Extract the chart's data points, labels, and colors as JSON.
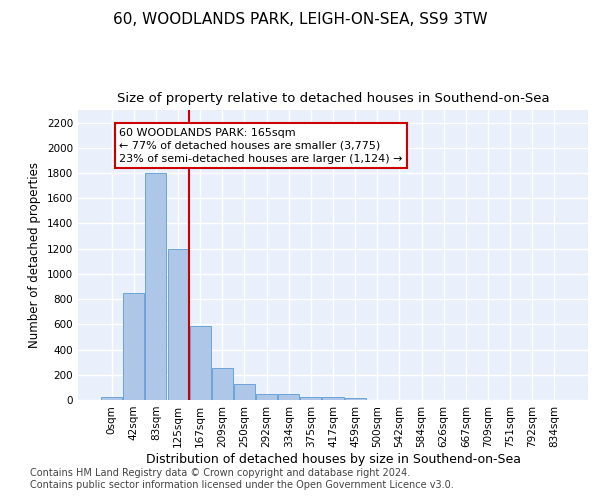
{
  "title1": "60, WOODLANDS PARK, LEIGH-ON-SEA, SS9 3TW",
  "title2": "Size of property relative to detached houses in Southend-on-Sea",
  "xlabel": "Distribution of detached houses by size in Southend-on-Sea",
  "ylabel": "Number of detached properties",
  "footer1": "Contains HM Land Registry data © Crown copyright and database right 2024.",
  "footer2": "Contains public sector information licensed under the Open Government Licence v3.0.",
  "bar_labels": [
    "0sqm",
    "42sqm",
    "83sqm",
    "125sqm",
    "167sqm",
    "209sqm",
    "250sqm",
    "292sqm",
    "334sqm",
    "375sqm",
    "417sqm",
    "459sqm",
    "500sqm",
    "542sqm",
    "584sqm",
    "626sqm",
    "667sqm",
    "709sqm",
    "751sqm",
    "792sqm",
    "834sqm"
  ],
  "bar_values": [
    25,
    850,
    1800,
    1200,
    585,
    255,
    130,
    45,
    45,
    25,
    20,
    15,
    0,
    0,
    0,
    0,
    0,
    0,
    0,
    0,
    0
  ],
  "bar_color": "#aec6e8",
  "bar_edge_color": "#5b9bd5",
  "vline_color": "#cc0000",
  "vline_index": 4,
  "annotation_text": "60 WOODLANDS PARK: 165sqm\n← 77% of detached houses are smaller (3,775)\n23% of semi-detached houses are larger (1,124) →",
  "annotation_box_facecolor": "#ffffff",
  "annotation_box_edgecolor": "#cc0000",
  "ylim": [
    0,
    2300
  ],
  "yticks": [
    0,
    200,
    400,
    600,
    800,
    1000,
    1200,
    1400,
    1600,
    1800,
    2000,
    2200
  ],
  "bg_color": "#eaf0fb",
  "grid_color": "#ffffff",
  "title1_fontsize": 11,
  "title2_fontsize": 9.5,
  "xlabel_fontsize": 9,
  "ylabel_fontsize": 8.5,
  "tick_fontsize": 7.5,
  "footer_fontsize": 7,
  "annotation_fontsize": 8
}
